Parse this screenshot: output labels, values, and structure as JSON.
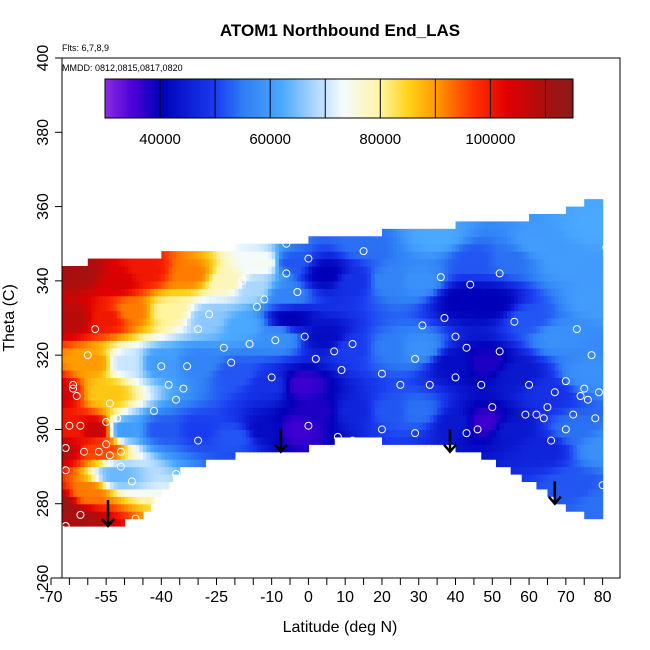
{
  "chart_data": {
    "type": "heatmap",
    "title": "ATOM1 Northbound End_LAS",
    "annotations": {
      "flights": "Flts: 6,7,8,9",
      "dates": "MMDD: 0812,0815,0817,0820"
    },
    "xlabel": "Latitude (deg N)",
    "ylabel": "Theta (C)",
    "xlim": [
      -70,
      85
    ],
    "ylim": [
      260,
      400
    ],
    "x_ticks": [
      -70,
      -55,
      -40,
      -25,
      -10,
      0,
      10,
      20,
      30,
      40,
      50,
      60,
      70,
      80
    ],
    "x_minor_step": 5,
    "y_ticks": [
      260,
      280,
      300,
      320,
      340,
      360,
      380,
      400
    ],
    "colorbar": {
      "min": 30000,
      "max": 115000,
      "step": 5000,
      "tick_values": [
        40000,
        60000,
        80000,
        100000
      ],
      "tick_labels": [
        "40000",
        "60000",
        "80000",
        "100000"
      ],
      "stops": [
        {
          "v": 30000,
          "c": "#8a2be2"
        },
        {
          "v": 35000,
          "c": "#4b00d8"
        },
        {
          "v": 40000,
          "c": "#0000b8"
        },
        {
          "v": 50000,
          "c": "#1a3cf0"
        },
        {
          "v": 55000,
          "c": "#2f7ef5"
        },
        {
          "v": 62000,
          "c": "#4aa8ff"
        },
        {
          "v": 67000,
          "c": "#9cd0ff"
        },
        {
          "v": 73000,
          "c": "#f4fbff"
        },
        {
          "v": 80000,
          "c": "#fff4a0"
        },
        {
          "v": 85000,
          "c": "#ffd21a"
        },
        {
          "v": 90000,
          "c": "#ff9a00"
        },
        {
          "v": 97000,
          "c": "#ff3000"
        },
        {
          "v": 103000,
          "c": "#e00000"
        },
        {
          "v": 110000,
          "c": "#a81010"
        },
        {
          "v": 115000,
          "c": "#8b1a1a"
        }
      ]
    },
    "upper_boundary": [
      [
        -65,
        344
      ],
      [
        -60,
        345
      ],
      [
        -50,
        346
      ],
      [
        -40,
        347
      ],
      [
        -30,
        348
      ],
      [
        -20,
        349
      ],
      [
        -10,
        350
      ],
      [
        0,
        351
      ],
      [
        10,
        352
      ],
      [
        20,
        353
      ],
      [
        30,
        354
      ],
      [
        40,
        355
      ],
      [
        50,
        356
      ],
      [
        60,
        357
      ],
      [
        65,
        358
      ],
      [
        70,
        359
      ],
      [
        75,
        361
      ],
      [
        77,
        361
      ]
    ],
    "lower_boundary": [
      [
        -67,
        274
      ],
      [
        -60,
        274
      ],
      [
        -55,
        274
      ],
      [
        -50,
        275
      ],
      [
        -45,
        277
      ],
      [
        -40,
        283
      ],
      [
        -35,
        289
      ],
      [
        -25,
        292
      ],
      [
        -15,
        294
      ],
      [
        -8,
        295
      ],
      [
        0,
        295
      ],
      [
        10,
        298
      ],
      [
        20,
        297
      ],
      [
        30,
        295
      ],
      [
        35,
        296
      ],
      [
        40,
        295
      ],
      [
        45,
        294
      ],
      [
        55,
        289
      ],
      [
        65,
        283
      ],
      [
        70,
        279
      ],
      [
        75,
        277
      ],
      [
        80,
        277
      ]
    ],
    "nodes": [
      {
        "x": -68,
        "y": 280,
        "v": 112000
      },
      {
        "x": -68,
        "y": 295,
        "v": 108000
      },
      {
        "x": -68,
        "y": 310,
        "v": 104000
      },
      {
        "x": -64,
        "y": 330,
        "v": 108000
      },
      {
        "x": -62,
        "y": 342,
        "v": 110000
      },
      {
        "x": -64,
        "y": 300,
        "v": 100000
      },
      {
        "x": -63,
        "y": 276,
        "v": 110000
      },
      {
        "x": -58,
        "y": 300,
        "v": 106000
      },
      {
        "x": -56,
        "y": 295,
        "v": 96000
      },
      {
        "x": -55,
        "y": 310,
        "v": 86000
      },
      {
        "x": -55,
        "y": 330,
        "v": 100000
      },
      {
        "x": -52,
        "y": 340,
        "v": 104000
      },
      {
        "x": -58,
        "y": 318,
        "v": 90000
      },
      {
        "x": -60,
        "y": 283,
        "v": 92000
      },
      {
        "x": -52,
        "y": 288,
        "v": 64000
      },
      {
        "x": -50,
        "y": 300,
        "v": 60000
      },
      {
        "x": -50,
        "y": 318,
        "v": 70000
      },
      {
        "x": -48,
        "y": 332,
        "v": 92000
      },
      {
        "x": -44,
        "y": 343,
        "v": 100000
      },
      {
        "x": -40,
        "y": 300,
        "v": 52000
      },
      {
        "x": -40,
        "y": 318,
        "v": 60000
      },
      {
        "x": -38,
        "y": 332,
        "v": 80000
      },
      {
        "x": -32,
        "y": 342,
        "v": 92000
      },
      {
        "x": -30,
        "y": 300,
        "v": 50000
      },
      {
        "x": -30,
        "y": 318,
        "v": 56000
      },
      {
        "x": -27,
        "y": 330,
        "v": 66000
      },
      {
        "x": -22,
        "y": 340,
        "v": 78000
      },
      {
        "x": -20,
        "y": 298,
        "v": 52000
      },
      {
        "x": -20,
        "y": 315,
        "v": 52000
      },
      {
        "x": -18,
        "y": 328,
        "v": 62000
      },
      {
        "x": -15,
        "y": 338,
        "v": 68000
      },
      {
        "x": -12,
        "y": 345,
        "v": 74000
      },
      {
        "x": -12,
        "y": 300,
        "v": 42000
      },
      {
        "x": -10,
        "y": 312,
        "v": 48000
      },
      {
        "x": -8,
        "y": 325,
        "v": 58000
      },
      {
        "x": -6,
        "y": 336,
        "v": 56000
      },
      {
        "x": -5,
        "y": 345,
        "v": 52000
      },
      {
        "x": -3,
        "y": 300,
        "v": 36000
      },
      {
        "x": -2,
        "y": 312,
        "v": 36000
      },
      {
        "x": -5,
        "y": 330,
        "v": 40000
      },
      {
        "x": 3,
        "y": 305,
        "v": 38000
      },
      {
        "x": 5,
        "y": 325,
        "v": 42000
      },
      {
        "x": 5,
        "y": 342,
        "v": 40000
      },
      {
        "x": 12,
        "y": 305,
        "v": 46000
      },
      {
        "x": 12,
        "y": 322,
        "v": 50000
      },
      {
        "x": 12,
        "y": 340,
        "v": 48000
      },
      {
        "x": 15,
        "y": 350,
        "v": 54000
      },
      {
        "x": 22,
        "y": 305,
        "v": 52000
      },
      {
        "x": 22,
        "y": 322,
        "v": 55000
      },
      {
        "x": 22,
        "y": 340,
        "v": 56000
      },
      {
        "x": 30,
        "y": 305,
        "v": 54000
      },
      {
        "x": 30,
        "y": 322,
        "v": 58000
      },
      {
        "x": 30,
        "y": 340,
        "v": 58000
      },
      {
        "x": 35,
        "y": 352,
        "v": 62000
      },
      {
        "x": 40,
        "y": 302,
        "v": 44000
      },
      {
        "x": 40,
        "y": 318,
        "v": 42000
      },
      {
        "x": 42,
        "y": 335,
        "v": 40000
      },
      {
        "x": 45,
        "y": 346,
        "v": 52000
      },
      {
        "x": 48,
        "y": 302,
        "v": 36000
      },
      {
        "x": 48,
        "y": 318,
        "v": 38000
      },
      {
        "x": 50,
        "y": 334,
        "v": 40000
      },
      {
        "x": 55,
        "y": 346,
        "v": 54000
      },
      {
        "x": 55,
        "y": 300,
        "v": 44000
      },
      {
        "x": 57,
        "y": 315,
        "v": 44000
      },
      {
        "x": 60,
        "y": 330,
        "v": 52000
      },
      {
        "x": 62,
        "y": 350,
        "v": 60000
      },
      {
        "x": 64,
        "y": 295,
        "v": 46000
      },
      {
        "x": 65,
        "y": 310,
        "v": 48000
      },
      {
        "x": 68,
        "y": 325,
        "v": 58000
      },
      {
        "x": 70,
        "y": 345,
        "v": 60000
      },
      {
        "x": 72,
        "y": 300,
        "v": 54000
      },
      {
        "x": 72,
        "y": 285,
        "v": 52000
      },
      {
        "x": 76,
        "y": 315,
        "v": 58000
      },
      {
        "x": 78,
        "y": 335,
        "v": 60000
      },
      {
        "x": 78,
        "y": 355,
        "v": 62000
      },
      {
        "x": 80,
        "y": 295,
        "v": 58000
      },
      {
        "x": 80,
        "y": 280,
        "v": 54000
      }
    ],
    "samples": [
      [
        -66,
        274
      ],
      [
        -67,
        273
      ],
      [
        -64,
        272
      ],
      [
        -62,
        277
      ],
      [
        -66,
        289
      ],
      [
        -66,
        295
      ],
      [
        -61,
        294
      ],
      [
        -57,
        294
      ],
      [
        -55,
        296
      ],
      [
        -54,
        293
      ],
      [
        -65,
        301
      ],
      [
        -62,
        301
      ],
      [
        -63,
        309
      ],
      [
        -64,
        311
      ],
      [
        -64,
        312
      ],
      [
        -60,
        320
      ],
      [
        -58,
        327
      ],
      [
        -55,
        302
      ],
      [
        -54,
        307
      ],
      [
        -52,
        303
      ],
      [
        -51,
        294
      ],
      [
        -48,
        286
      ],
      [
        -51,
        290
      ],
      [
        -47,
        276
      ],
      [
        -44,
        272
      ],
      [
        -36,
        288
      ],
      [
        -36,
        308
      ],
      [
        -34,
        311
      ],
      [
        -38,
        312
      ],
      [
        -42,
        305
      ],
      [
        -40,
        317
      ],
      [
        -30,
        297
      ],
      [
        -33,
        317
      ],
      [
        -30,
        327
      ],
      [
        -27,
        331
      ],
      [
        -23,
        322
      ],
      [
        -21,
        318
      ],
      [
        -18,
        340
      ],
      [
        -16,
        323
      ],
      [
        -14,
        333
      ],
      [
        -12,
        335
      ],
      [
        -10,
        314
      ],
      [
        -9,
        324
      ],
      [
        -6,
        342
      ],
      [
        -6,
        350
      ],
      [
        -3,
        337
      ],
      [
        0,
        346
      ],
      [
        0,
        301
      ],
      [
        2,
        319
      ],
      [
        -1,
        325
      ],
      [
        8,
        298
      ],
      [
        12,
        297
      ],
      [
        7,
        321
      ],
      [
        9,
        316
      ],
      [
        12,
        323
      ],
      [
        15,
        348
      ],
      [
        20,
        300
      ],
      [
        20,
        315
      ],
      [
        25,
        312
      ],
      [
        29,
        299
      ],
      [
        29,
        319
      ],
      [
        31,
        328
      ],
      [
        33,
        312
      ],
      [
        36,
        341
      ],
      [
        37,
        330
      ],
      [
        40,
        314
      ],
      [
        40,
        325
      ],
      [
        43,
        322
      ],
      [
        43,
        299
      ],
      [
        46,
        300
      ],
      [
        47,
        312
      ],
      [
        44,
        339
      ],
      [
        50,
        306
      ],
      [
        52,
        321
      ],
      [
        52,
        342
      ],
      [
        56,
        329
      ],
      [
        59,
        304
      ],
      [
        60,
        312
      ],
      [
        62,
        304
      ],
      [
        64,
        303
      ],
      [
        65,
        306
      ],
      [
        66,
        297
      ],
      [
        67,
        310
      ],
      [
        70,
        313
      ],
      [
        70,
        300
      ],
      [
        72,
        304
      ],
      [
        73,
        327
      ],
      [
        74,
        309
      ],
      [
        75,
        311
      ],
      [
        76,
        308
      ],
      [
        77,
        320
      ],
      [
        78,
        303
      ],
      [
        79,
        310
      ],
      [
        80,
        285
      ],
      [
        82,
        331
      ],
      [
        82,
        340
      ],
      [
        81,
        349
      ],
      [
        83,
        312
      ],
      [
        84,
        295
      ],
      [
        85,
        287
      ]
    ],
    "arrows": [
      {
        "x": -54.5,
        "y_from": 281,
        "y_to": 274
      },
      {
        "x": -7.5,
        "y_from": 300,
        "y_to": 294
      },
      {
        "x": 38.5,
        "y_from": 300,
        "y_to": 294
      },
      {
        "x": 67,
        "y_from": 286,
        "y_to": 280
      }
    ]
  }
}
